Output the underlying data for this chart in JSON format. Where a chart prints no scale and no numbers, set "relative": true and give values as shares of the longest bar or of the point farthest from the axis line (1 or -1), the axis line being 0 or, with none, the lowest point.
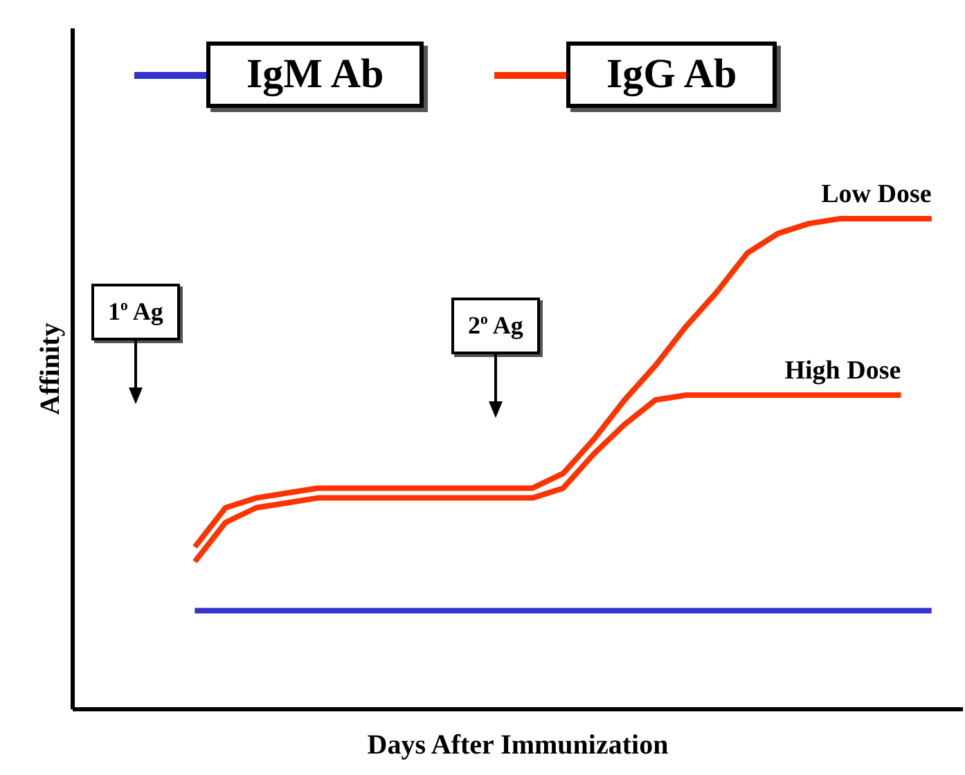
{
  "chart_data": {
    "type": "line",
    "relative": true,
    "xlabel": "Days After Immunization",
    "ylabel": "Affinity",
    "categories": [
      null,
      null,
      null,
      null,
      null,
      null,
      null,
      null,
      null,
      null,
      null,
      null,
      null,
      null,
      null,
      null,
      null,
      null,
      null,
      null,
      null,
      null,
      null,
      null,
      null,
      null,
      null,
      null,
      null,
      null
    ],
    "series": [
      {
        "name": "IgM Ab",
        "color": "#3333cc",
        "values": [
          null,
          null,
          null,
          null,
          0.2,
          0.2,
          0.2,
          0.2,
          0.2,
          0.2,
          0.2,
          0.2,
          0.2,
          0.2,
          0.2,
          0.2,
          0.2,
          0.2,
          0.2,
          0.2,
          0.2,
          0.2,
          0.2,
          0.2,
          0.2,
          0.2,
          0.2,
          0.2,
          0.2,
          null
        ]
      },
      {
        "name": "Low Dose",
        "color": "#ff3300",
        "values": [
          null,
          null,
          null,
          null,
          0.33,
          0.41,
          0.43,
          0.44,
          0.45,
          0.45,
          0.45,
          0.45,
          0.45,
          0.45,
          0.45,
          0.45,
          0.48,
          0.55,
          0.63,
          0.7,
          0.78,
          0.85,
          0.93,
          0.97,
          0.99,
          1,
          1,
          1,
          1,
          null
        ]
      },
      {
        "name": "High Dose",
        "color": "#ff3300",
        "values": [
          null,
          null,
          null,
          null,
          0.3,
          0.38,
          0.41,
          0.42,
          0.43,
          0.43,
          0.43,
          0.43,
          0.43,
          0.43,
          0.43,
          0.43,
          0.45,
          0.52,
          0.58,
          0.63,
          0.64,
          0.64,
          0.64,
          0.64,
          0.64,
          0.64,
          0.64,
          0.64,
          null,
          null
        ]
      }
    ],
    "annotations": [
      "IgG Ab",
      "1$^{o}$ Ag",
      "2$^{o}$ Ag"
    ],
    "legend": "top",
    "marker": "none",
    "line_style": "solid"
  }
}
